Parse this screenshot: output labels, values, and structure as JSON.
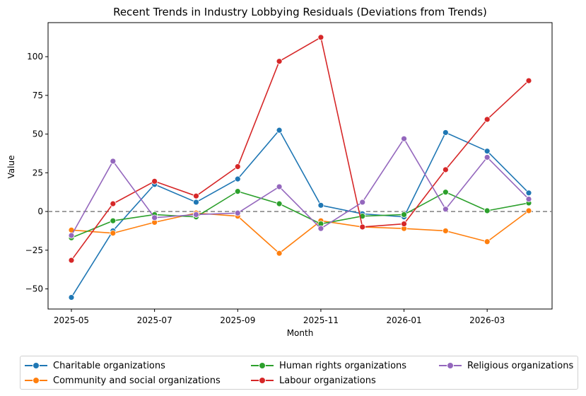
{
  "chart_data": {
    "type": "line",
    "title": "Recent Trends in Industry Lobbying Residuals (Deviations from Trends)",
    "xlabel": "Month",
    "ylabel": "Value",
    "x": [
      "2025-05",
      "2025-06",
      "2025-07",
      "2025-08",
      "2025-09",
      "2025-10",
      "2025-11",
      "2025-12",
      "2026-01",
      "2026-02",
      "2026-03",
      "2026-04"
    ],
    "x_ticks": [
      "2025-05",
      "2025-07",
      "2025-09",
      "2025-11",
      "2026-01",
      "2026-03"
    ],
    "y_ticks": [
      -50,
      -25,
      0,
      25,
      50,
      75,
      100
    ],
    "ylim": [
      -63,
      122
    ],
    "reference_line": 0,
    "grid": false,
    "legend_position": "bottom",
    "series": [
      {
        "name": "Charitable organizations",
        "color": "#1f77b4",
        "values": [
          -55.5,
          -12.5,
          17.5,
          6,
          21,
          52.5,
          4,
          -1.5,
          -3.5,
          51,
          39,
          12
        ]
      },
      {
        "name": "Community and social organizations",
        "color": "#ff7f0e",
        "values": [
          -12,
          -14,
          -7,
          -1,
          -3,
          -27,
          -6,
          -10,
          -11,
          -12.5,
          -19.5,
          0.5
        ]
      },
      {
        "name": "Human rights organizations",
        "color": "#2ca02c",
        "values": [
          -17,
          -6,
          -2,
          -3.5,
          13,
          5,
          -8,
          -3,
          -2,
          12.5,
          0.5,
          5.5
        ]
      },
      {
        "name": "Labour organizations",
        "color": "#d62728",
        "values": [
          -31.5,
          5,
          19.5,
          10,
          29,
          97,
          112.5,
          -10,
          -8,
          27,
          59.5,
          84.5
        ]
      },
      {
        "name": "Religious organizations",
        "color": "#9467bd",
        "values": [
          -15.5,
          32.5,
          -4,
          -2,
          -1,
          16,
          -11,
          6,
          47,
          1.5,
          35,
          8
        ]
      }
    ]
  }
}
